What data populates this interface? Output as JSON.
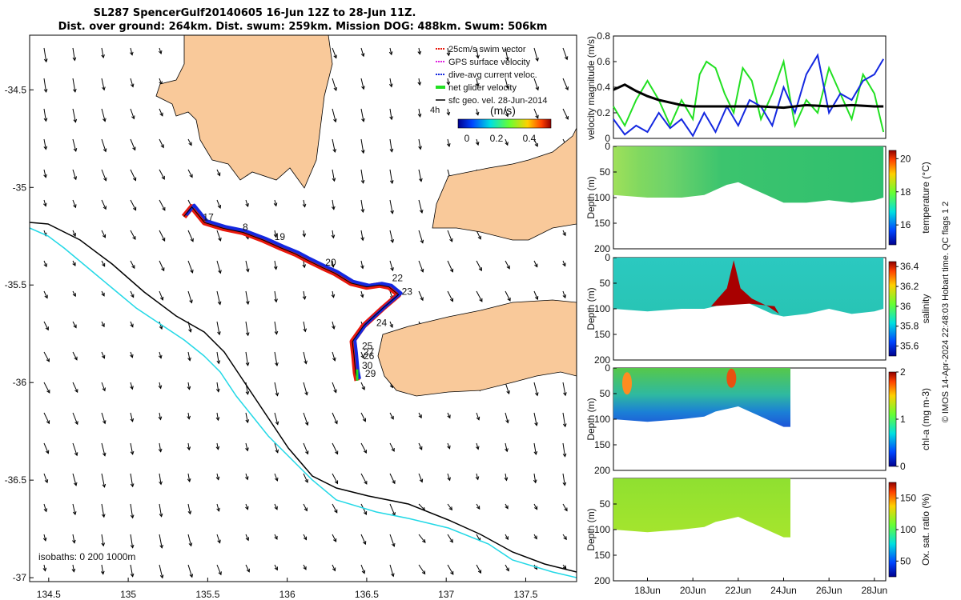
{
  "header": {
    "line1": "SL287 SpencerGulf20140605 16-Jun 12Z to 28-Jun 11Z.",
    "line2": "Dist. over ground: 264km. Dist. swum: 259km. Mission DOG: 488km. Swum: 506km"
  },
  "credit": "© IMOS 14-Apr-2024 22:48:03 Hobart time. QC flags 1  2",
  "colors": {
    "land": "#f9c99a",
    "isobath200": "#000000",
    "isobath1000": "#22d8e6",
    "track_red": "#e8180c",
    "track_blue": "#1428e0",
    "net": "#22e022",
    "sfc": "#000000",
    "gps": "#e020e0"
  },
  "chart_data": [
    {
      "type": "scatter",
      "id": "map",
      "xlabel": "",
      "ylabel": "",
      "xlim": [
        134.38,
        137.82
      ],
      "ylim": [
        -37.02,
        -34.22
      ],
      "xticks": [
        "134.5",
        "135",
        "135.5",
        "136",
        "136.5",
        "137",
        "137.5"
      ],
      "yticks": [
        "-34.5",
        "-35",
        "-35.5",
        "-36",
        "-36.5",
        "-37"
      ],
      "legend": {
        "placement": "top-right",
        "items": [
          {
            "label": "25cm/s swim vector",
            "color": "#e8180c"
          },
          {
            "label": "GPS surface velocity",
            "color": "#e020e0"
          },
          {
            "label": "dive-avg current veloc.",
            "color": "#1428e0"
          },
          {
            "label": "net glider velocity",
            "color": "#22e022"
          },
          {
            "label": "sfc geo. vel. 28-Jun-2014",
            "color": "#000000"
          }
        ]
      },
      "scale_label": "4h",
      "colorbar": {
        "label": "(m/s)",
        "ticks": [
          "0",
          "0.2",
          "0.4"
        ],
        "range": [
          0,
          0.5
        ]
      },
      "isobaths_label": "isobaths: 0   200  1000m",
      "day_labels": [
        {
          "text": "17",
          "lon": 135.47,
          "lat": -35.17
        },
        {
          "text": "8",
          "lon": 135.72,
          "lat": -35.22
        },
        {
          "text": "19",
          "lon": 135.92,
          "lat": -35.27
        },
        {
          "text": "20",
          "lon": 136.24,
          "lat": -35.4
        },
        {
          "text": "22",
          "lon": 136.66,
          "lat": -35.48
        },
        {
          "text": "23",
          "lon": 136.72,
          "lat": -35.55
        },
        {
          "text": "24",
          "lon": 136.56,
          "lat": -35.71
        },
        {
          "text": "25",
          "lon": 136.47,
          "lat": -35.83
        },
        {
          "text": "27",
          "lon": 136.48,
          "lat": -35.86
        },
        {
          "text": "26",
          "lon": 136.48,
          "lat": -35.88
        },
        {
          "text": "30",
          "lon": 136.47,
          "lat": -35.93
        },
        {
          "text": "29",
          "lon": 136.49,
          "lat": -35.97
        }
      ],
      "track": [
        [
          135.35,
          -35.15
        ],
        [
          135.4,
          -35.1
        ],
        [
          135.48,
          -35.18
        ],
        [
          135.6,
          -35.21
        ],
        [
          135.72,
          -35.23
        ],
        [
          135.85,
          -35.27
        ],
        [
          135.96,
          -35.31
        ],
        [
          136.05,
          -35.34
        ],
        [
          136.12,
          -35.37
        ],
        [
          136.22,
          -35.41
        ],
        [
          136.3,
          -35.44
        ],
        [
          136.4,
          -35.49
        ],
        [
          136.5,
          -35.51
        ],
        [
          136.58,
          -35.5
        ],
        [
          136.64,
          -35.51
        ],
        [
          136.7,
          -35.55
        ],
        [
          136.6,
          -35.62
        ],
        [
          136.48,
          -35.71
        ],
        [
          136.41,
          -35.79
        ],
        [
          136.42,
          -35.86
        ],
        [
          136.43,
          -35.95
        ],
        [
          136.44,
          -35.99
        ]
      ]
    },
    {
      "type": "line",
      "id": "velocity",
      "ylabel": "velocity magnitude (m/s)",
      "xlim": [
        16.5,
        28.5
      ],
      "ylim": [
        0,
        0.8
      ],
      "yticks": [
        "0",
        "0.2",
        "0.4",
        "0.6",
        "0.8"
      ],
      "series": [
        {
          "name": "",
          "color": "#22e022",
          "x": [
            16.5,
            17,
            17.5,
            18,
            18.5,
            19,
            19.5,
            20,
            20.3,
            20.6,
            21,
            21.4,
            21.8,
            22.2,
            22.6,
            23,
            23.5,
            24,
            24.5,
            25,
            25.5,
            26,
            26.5,
            27,
            27.5,
            28,
            28.4
          ],
          "y": [
            0.25,
            0.1,
            0.3,
            0.45,
            0.3,
            0.1,
            0.3,
            0.15,
            0.5,
            0.6,
            0.55,
            0.35,
            0.2,
            0.55,
            0.45,
            0.15,
            0.35,
            0.6,
            0.1,
            0.3,
            0.2,
            0.55,
            0.35,
            0.15,
            0.5,
            0.35,
            0.05
          ]
        },
        {
          "name": "",
          "color": "#1428e0",
          "x": [
            16.5,
            17,
            17.5,
            18,
            18.5,
            19,
            19.5,
            20,
            20.5,
            21,
            21.5,
            22,
            22.5,
            23,
            23.5,
            24,
            24.5,
            25,
            25.5,
            26,
            26.5,
            27,
            27.5,
            28,
            28.4
          ],
          "y": [
            0.15,
            0.03,
            0.1,
            0.05,
            0.2,
            0.08,
            0.15,
            0.02,
            0.2,
            0.05,
            0.25,
            0.1,
            0.3,
            0.25,
            0.1,
            0.4,
            0.2,
            0.5,
            0.65,
            0.2,
            0.35,
            0.3,
            0.45,
            0.5,
            0.62
          ]
        },
        {
          "name": "",
          "color": "#000000",
          "x": [
            16.5,
            17,
            17.5,
            18,
            18.5,
            19,
            19.5,
            20,
            21,
            22,
            23,
            24,
            25,
            26,
            27,
            28,
            28.4
          ],
          "y": [
            0.38,
            0.42,
            0.37,
            0.33,
            0.3,
            0.28,
            0.26,
            0.25,
            0.25,
            0.25,
            0.25,
            0.24,
            0.26,
            0.25,
            0.26,
            0.25,
            0.25
          ]
        }
      ]
    },
    {
      "type": "heatmap",
      "id": "temperature",
      "ylabel": "Depth (m)",
      "clabel": "temperature (°C)",
      "ylim": [
        0,
        200
      ],
      "yticks": [
        "0",
        "50",
        "100",
        "150",
        "200"
      ],
      "cticks": [
        "16",
        "18",
        "20"
      ],
      "crange": [
        14.8,
        20.5
      ],
      "bottom_depth": [
        [
          16.5,
          95
        ],
        [
          18,
          100
        ],
        [
          19.5,
          100
        ],
        [
          20.5,
          95
        ],
        [
          21,
          85
        ],
        [
          21.5,
          75
        ],
        [
          22,
          70
        ],
        [
          22.5,
          80
        ],
        [
          23,
          90
        ],
        [
          23.5,
          100
        ],
        [
          24,
          110
        ],
        [
          25,
          110
        ],
        [
          26,
          105
        ],
        [
          27,
          110
        ],
        [
          28,
          105
        ],
        [
          28.4,
          100
        ]
      ]
    },
    {
      "type": "heatmap",
      "id": "salinity",
      "ylabel": "Depth (m)",
      "clabel": "salinity",
      "ylim": [
        0,
        200
      ],
      "yticks": [
        "0",
        "50",
        "100",
        "150",
        "200"
      ],
      "cticks": [
        "35.6",
        "35.8",
        "36",
        "36.2",
        "36.4"
      ],
      "crange": [
        35.5,
        36.45
      ],
      "bottom_depth": [
        [
          16.5,
          100
        ],
        [
          18,
          105
        ],
        [
          19.5,
          100
        ],
        [
          20.5,
          100
        ],
        [
          21,
          95
        ],
        [
          21.5,
          85
        ],
        [
          22,
          80
        ],
        [
          22.5,
          90
        ],
        [
          23,
          100
        ],
        [
          23.5,
          110
        ],
        [
          24,
          115
        ],
        [
          25,
          110
        ],
        [
          26,
          100
        ],
        [
          27,
          110
        ],
        [
          28,
          105
        ],
        [
          28.4,
          100
        ]
      ]
    },
    {
      "type": "heatmap",
      "id": "chla",
      "ylabel": "Depth (m)",
      "clabel": "chl-a (mg m-3)",
      "ylim": [
        0,
        200
      ],
      "yticks": [
        "0",
        "50",
        "100",
        "150",
        "200"
      ],
      "cticks": [
        "0",
        "1",
        "2"
      ],
      "crange": [
        0,
        2
      ],
      "bottom_depth": [
        [
          16.5,
          100
        ],
        [
          18,
          105
        ],
        [
          19.5,
          100
        ],
        [
          20.5,
          95
        ],
        [
          21,
          85
        ],
        [
          21.5,
          80
        ],
        [
          22,
          75
        ],
        [
          22.5,
          85
        ],
        [
          23,
          95
        ],
        [
          23.5,
          105
        ],
        [
          24,
          115
        ],
        [
          24.3,
          115
        ]
      ]
    },
    {
      "type": "heatmap",
      "id": "oxygen",
      "ylabel": "Depth (m)",
      "clabel": "Ox. sat. ratio (%)",
      "ylim": [
        0,
        200
      ],
      "yticks": [
        "50",
        "100",
        "150",
        "200"
      ],
      "cticks": [
        "50",
        "100",
        "150"
      ],
      "crange": [
        25,
        175
      ],
      "xticks": [
        "18Jun",
        "20Jun",
        "22Jun",
        "24Jun",
        "26Jun",
        "28Jun"
      ],
      "xtick_days": [
        18,
        20,
        22,
        24,
        26,
        28
      ],
      "xlim": [
        16.5,
        28.5
      ],
      "bottom_depth": [
        [
          16.5,
          100
        ],
        [
          18,
          105
        ],
        [
          19.5,
          100
        ],
        [
          20.5,
          95
        ],
        [
          21,
          85
        ],
        [
          21.5,
          80
        ],
        [
          22,
          75
        ],
        [
          22.5,
          85
        ],
        [
          23,
          95
        ],
        [
          23.5,
          105
        ],
        [
          24,
          115
        ],
        [
          24.3,
          115
        ]
      ]
    }
  ]
}
